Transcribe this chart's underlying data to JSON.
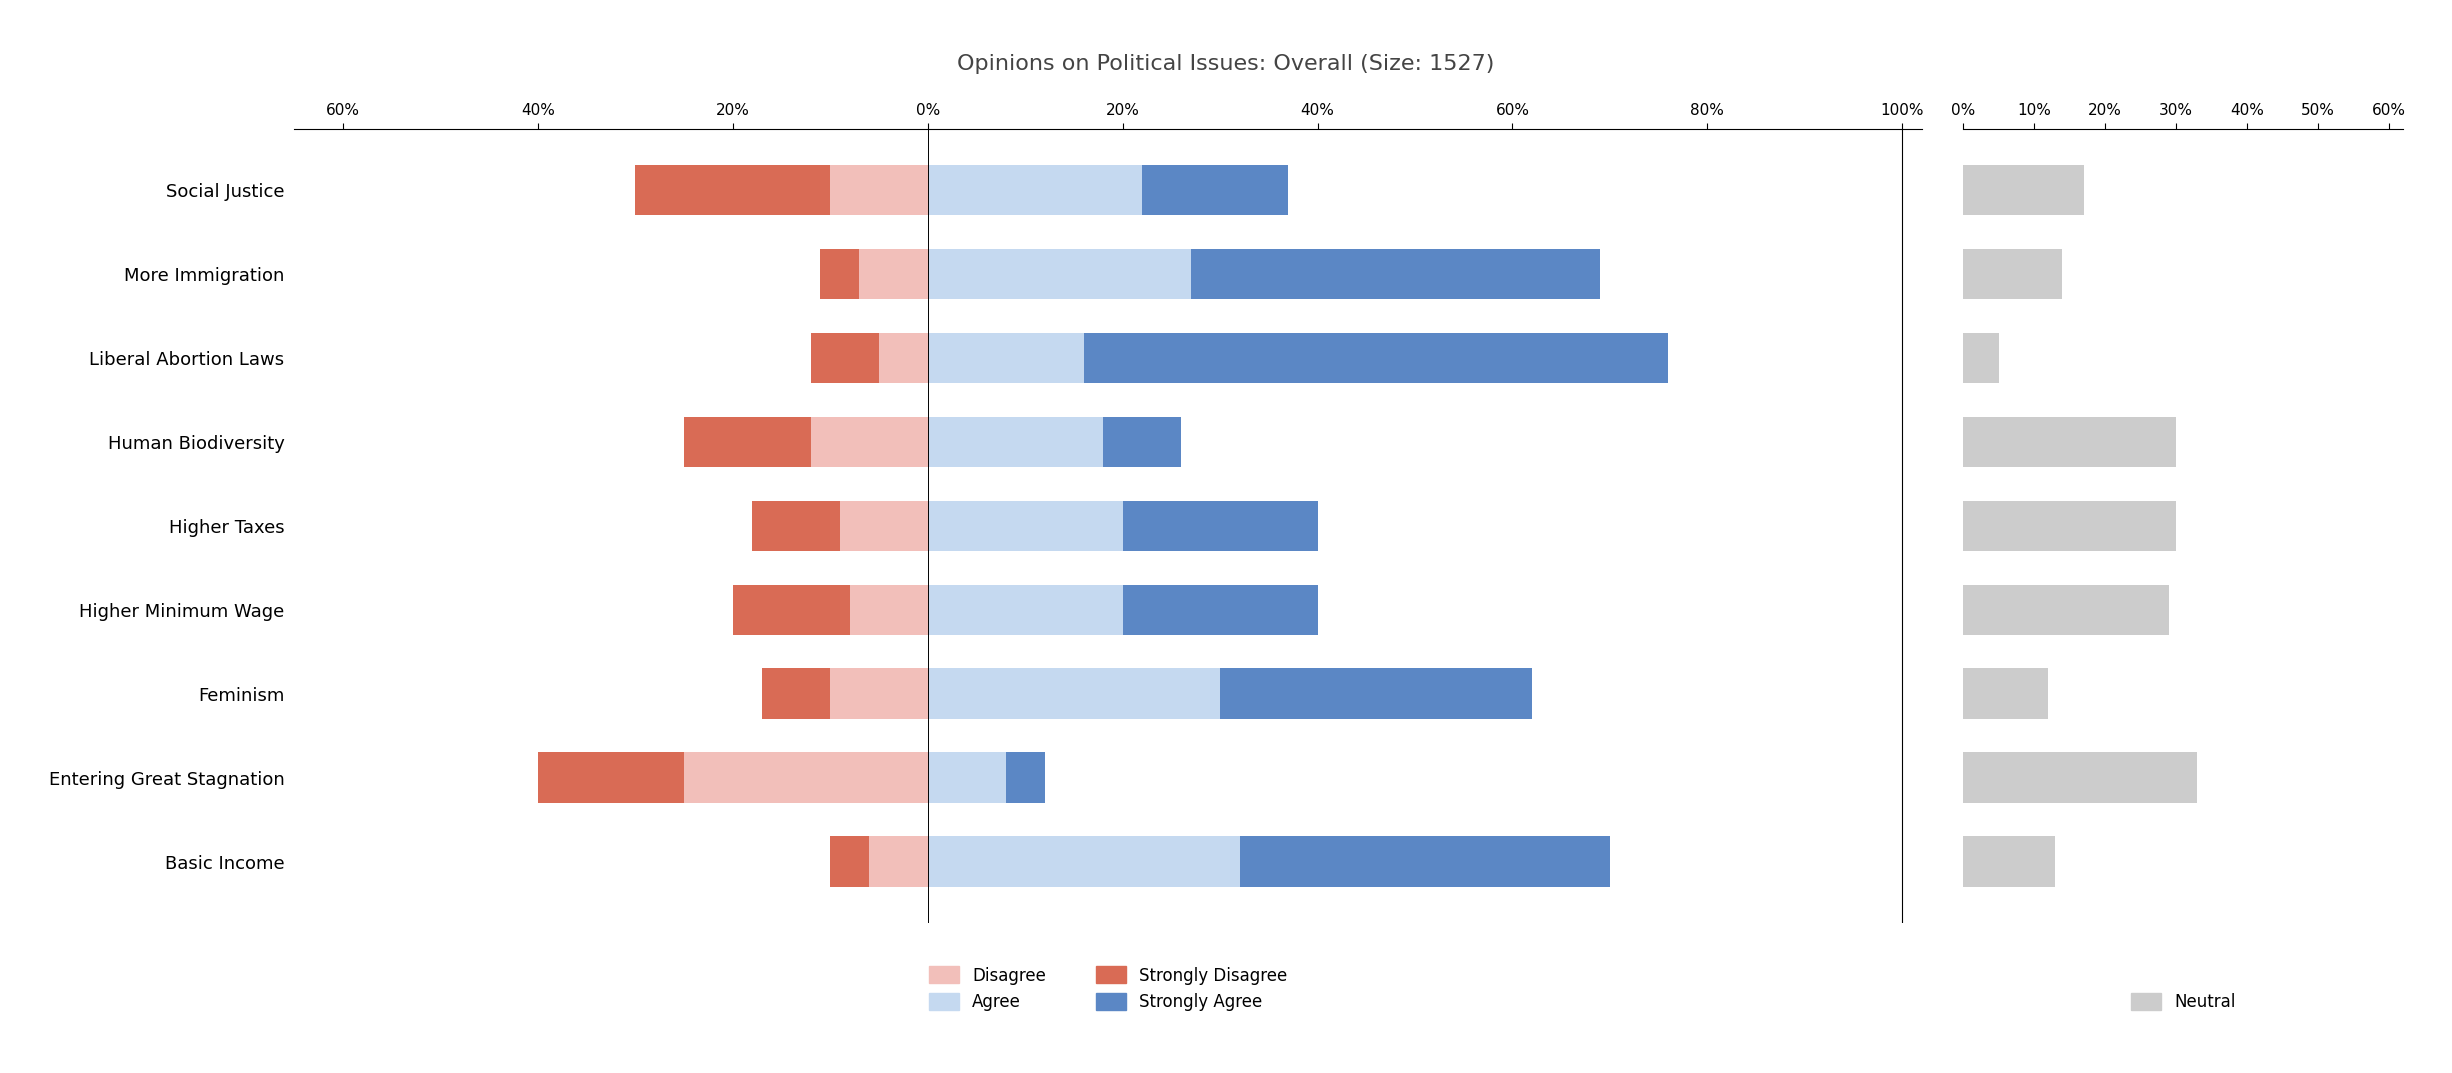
{
  "title": "Opinions on Political Issues: Overall (Size: 1527)",
  "categories": [
    "Social Justice",
    "More Immigration",
    "Liberal Abortion Laws",
    "Human Biodiversity",
    "Higher Taxes",
    "Higher Minimum Wage",
    "Feminism",
    "Entering Great Stagnation",
    "Basic Income"
  ],
  "strongly_disagree": [
    20,
    4,
    7,
    13,
    9,
    12,
    7,
    15,
    4
  ],
  "disagree": [
    10,
    7,
    5,
    12,
    9,
    8,
    10,
    25,
    6
  ],
  "agree": [
    22,
    27,
    16,
    18,
    20,
    20,
    30,
    8,
    32
  ],
  "strongly_agree": [
    15,
    42,
    60,
    8,
    20,
    20,
    32,
    4,
    38
  ],
  "neutral": [
    17,
    14,
    5,
    30,
    30,
    29,
    12,
    33,
    13
  ],
  "color_strongly_disagree": "#d96b55",
  "color_disagree": "#f2bfba",
  "color_agree": "#c5d9f0",
  "color_strongly_agree": "#5b87c5",
  "color_neutral": "#cccccc",
  "left_xlim": [
    -65,
    102
  ],
  "right_xlim": [
    0,
    62
  ],
  "left_xticks": [
    -60,
    -40,
    -20,
    0,
    20,
    40,
    60,
    80,
    100
  ],
  "left_xticklabels": [
    "60%",
    "40%",
    "20%",
    "0%",
    "20%",
    "40%",
    "60%",
    "80%",
    "100%"
  ],
  "right_xticks": [
    0,
    10,
    20,
    30,
    40,
    50,
    60
  ],
  "right_xticklabels": [
    "0%",
    "10%",
    "20%",
    "30%",
    "40%",
    "50%",
    "60%"
  ],
  "bar_height": 0.6,
  "title_fontsize": 16,
  "tick_fontsize": 11,
  "label_fontsize": 13,
  "legend_fontsize": 12
}
